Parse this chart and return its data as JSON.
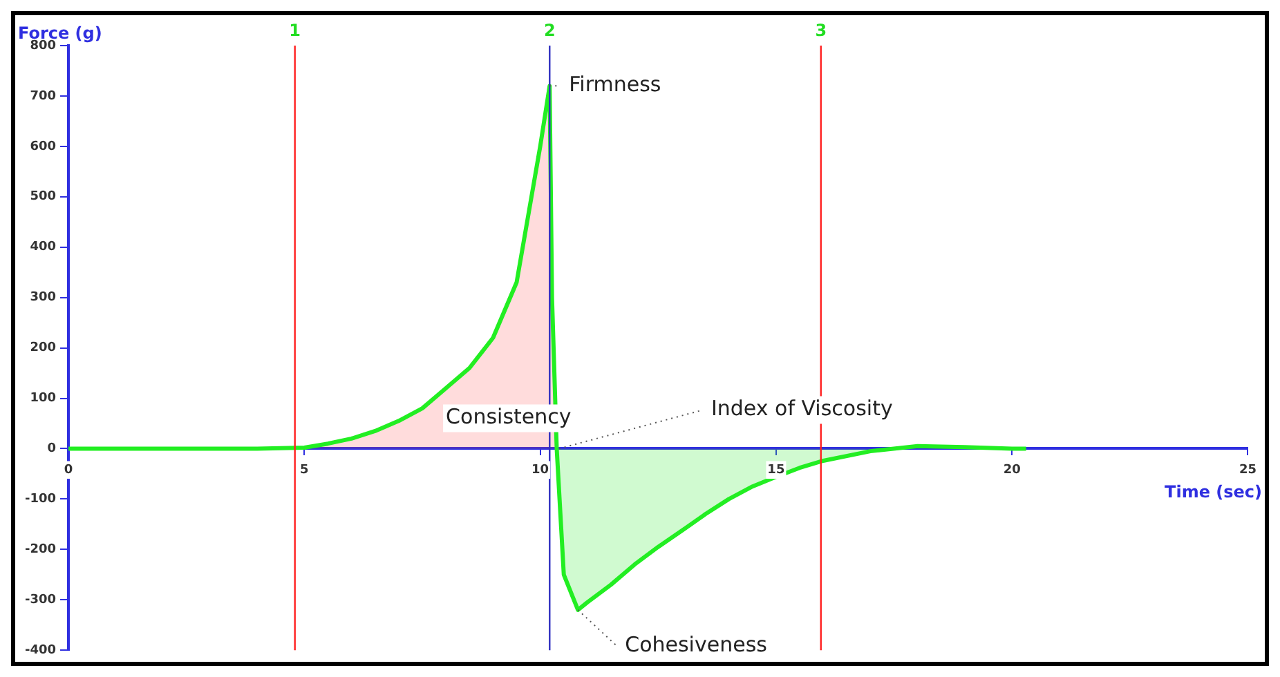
{
  "chart_data": {
    "type": "line",
    "xlabel": "Time (sec)",
    "ylabel": "Force (g)",
    "x": [
      0,
      1,
      2,
      3,
      4,
      5,
      5.5,
      6,
      6.5,
      7,
      7.5,
      8,
      8.5,
      9,
      9.5,
      10,
      10.2,
      10.25,
      10.35,
      10.5,
      10.8,
      11,
      11.5,
      12,
      12.5,
      13,
      13.5,
      14,
      14.5,
      15,
      15.5,
      16,
      17,
      18,
      19,
      20,
      20.3
    ],
    "series": [
      {
        "color": "#22ee22",
        "values": [
          0,
          0,
          0,
          0,
          0,
          2,
          10,
          20,
          35,
          55,
          80,
          120,
          160,
          220,
          330,
          600,
          720,
          300,
          0,
          -250,
          -320,
          -305,
          -270,
          -230,
          -195,
          -163,
          -130,
          -100,
          -75,
          -56,
          -38,
          -24,
          -5,
          5,
          3,
          0,
          0
        ]
      }
    ],
    "xlim": [
      0,
      25
    ],
    "xticks": [
      0,
      5,
      10,
      15,
      20,
      25
    ],
    "ylim": [
      -400,
      800
    ],
    "yticks": [
      -400,
      -300,
      -200,
      -100,
      0,
      100,
      200,
      300,
      400,
      500,
      600,
      700,
      800
    ],
    "grid": false,
    "legend": false,
    "marker": "none",
    "line_style": "solid",
    "ref_lines": [
      {
        "axis": "x",
        "value": 4.8,
        "color": "#ff2020"
      },
      {
        "axis": "x",
        "value": 10.2,
        "color": "#3030c0"
      },
      {
        "axis": "x",
        "value": 15.95,
        "color": "#ff2020"
      }
    ],
    "annotations": [
      "1",
      "2",
      "3",
      {
        "text": "Firmness",
        "x": 10.2,
        "y": 720
      },
      "Consistency",
      {
        "text": "Index of Viscosity",
        "x": 10.4,
        "y": 0
      },
      {
        "text": "Cohesiveness",
        "x": 10.8,
        "y": -320
      }
    ]
  }
}
